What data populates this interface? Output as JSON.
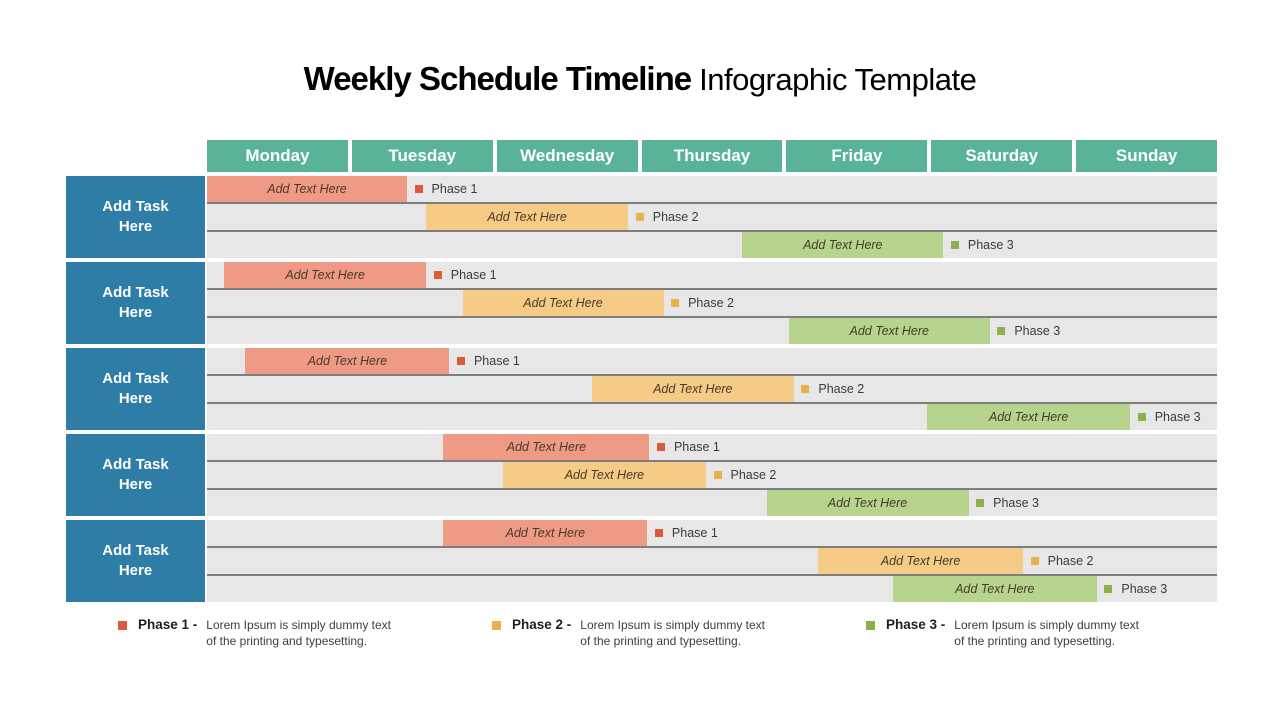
{
  "title": {
    "bold": "Weekly Schedule Timeline",
    "regular": "Infographic Template"
  },
  "days": [
    "Monday",
    "Tuesday",
    "Wednesday",
    "Thursday",
    "Friday",
    "Saturday",
    "Sunday"
  ],
  "colors": {
    "header_bg": "#58B39A",
    "task_bg": "#2E7DA7",
    "row_bg": "#E7E7E7",
    "separator": "#7E7E7E",
    "phase1": {
      "bar": "#EE9A84",
      "marker": "#DC5B3C"
    },
    "phase2": {
      "bar": "#F5CB86",
      "marker": "#E8AF4B"
    },
    "phase3": {
      "bar": "#B6D48D",
      "marker": "#89B24B"
    }
  },
  "schedule": {
    "groups": [
      {
        "task": "Add Task Here",
        "rows": [
          {
            "bar_label": "Add Text Here",
            "phase": "Phase 1",
            "phase_key": "phase1",
            "left_pct": 0.0,
            "width_pct": 19.8
          },
          {
            "bar_label": "Add Text Here",
            "phase": "Phase 2",
            "phase_key": "phase2",
            "left_pct": 21.7,
            "width_pct": 20.0
          },
          {
            "bar_label": "Add Text Here",
            "phase": "Phase 3",
            "phase_key": "phase3",
            "left_pct": 53.0,
            "width_pct": 19.9
          }
        ]
      },
      {
        "task": "Add Task Here",
        "rows": [
          {
            "bar_label": "Add Text Here",
            "phase": "Phase 1",
            "phase_key": "phase1",
            "left_pct": 1.7,
            "width_pct": 20.0
          },
          {
            "bar_label": "Add Text Here",
            "phase": "Phase 2",
            "phase_key": "phase2",
            "left_pct": 25.3,
            "width_pct": 19.9
          },
          {
            "bar_label": "Add Text Here",
            "phase": "Phase 3",
            "phase_key": "phase3",
            "left_pct": 57.6,
            "width_pct": 19.9
          }
        ]
      },
      {
        "task": "Add Task Here",
        "rows": [
          {
            "bar_label": "Add Text Here",
            "phase": "Phase 1",
            "phase_key": "phase1",
            "left_pct": 3.8,
            "width_pct": 20.2
          },
          {
            "bar_label": "Add Text Here",
            "phase": "Phase 2",
            "phase_key": "phase2",
            "left_pct": 38.1,
            "width_pct": 20.0
          },
          {
            "bar_label": "Add Text Here",
            "phase": "Phase 3",
            "phase_key": "phase3",
            "left_pct": 71.3,
            "width_pct": 20.1
          }
        ]
      },
      {
        "task": "Add Task Here",
        "rows": [
          {
            "bar_label": "Add Text Here",
            "phase": "Phase 1",
            "phase_key": "phase1",
            "left_pct": 23.4,
            "width_pct": 20.4
          },
          {
            "bar_label": "Add Text Here",
            "phase": "Phase 2",
            "phase_key": "phase2",
            "left_pct": 29.3,
            "width_pct": 20.1
          },
          {
            "bar_label": "Add Text Here",
            "phase": "Phase 3",
            "phase_key": "phase3",
            "left_pct": 55.4,
            "width_pct": 20.0
          }
        ]
      },
      {
        "task": "Add Task Here",
        "rows": [
          {
            "bar_label": "Add Text Here",
            "phase": "Phase 1",
            "phase_key": "phase1",
            "left_pct": 23.4,
            "width_pct": 20.2
          },
          {
            "bar_label": "Add Text Here",
            "phase": "Phase 2",
            "phase_key": "phase2",
            "left_pct": 60.5,
            "width_pct": 20.3
          },
          {
            "bar_label": "Add Text Here",
            "phase": "Phase 3",
            "phase_key": "phase3",
            "left_pct": 67.9,
            "width_pct": 20.2
          }
        ]
      }
    ]
  },
  "legend": [
    {
      "label": "Phase 1 -",
      "phase_key": "phase1",
      "desc_line1": "Lorem Ipsum is simply dummy text",
      "desc_line2": "of the printing and typesetting."
    },
    {
      "label": "Phase 2 -",
      "phase_key": "phase2",
      "desc_line1": "Lorem Ipsum is simply dummy text",
      "desc_line2": "of the printing and typesetting."
    },
    {
      "label": "Phase 3 -",
      "phase_key": "phase3",
      "desc_line1": "Lorem Ipsum is simply dummy text",
      "desc_line2": "of the printing and typesetting."
    }
  ],
  "chart_data": {
    "type": "bar",
    "subtype": "gantt-weekly-timeline",
    "title": "Weekly Schedule Timeline Infographic Template",
    "x_axis_categories": [
      "Monday",
      "Tuesday",
      "Wednesday",
      "Thursday",
      "Friday",
      "Saturday",
      "Sunday"
    ],
    "x_range_days": [
      0,
      7
    ],
    "y_categories": [
      "Add Task Here",
      "Add Task Here",
      "Add Task Here",
      "Add Task Here",
      "Add Task Here"
    ],
    "legend_position": "bottom",
    "grid": false,
    "bars": [
      {
        "task_index": 0,
        "phase": "Phase 1",
        "start_day": 0.0,
        "end_day": 1.39
      },
      {
        "task_index": 0,
        "phase": "Phase 2",
        "start_day": 1.52,
        "end_day": 2.92
      },
      {
        "task_index": 0,
        "phase": "Phase 3",
        "start_day": 3.71,
        "end_day": 5.1
      },
      {
        "task_index": 1,
        "phase": "Phase 1",
        "start_day": 0.12,
        "end_day": 1.52
      },
      {
        "task_index": 1,
        "phase": "Phase 2",
        "start_day": 1.77,
        "end_day": 3.16
      },
      {
        "task_index": 1,
        "phase": "Phase 3",
        "start_day": 4.03,
        "end_day": 5.43
      },
      {
        "task_index": 2,
        "phase": "Phase 1",
        "start_day": 0.27,
        "end_day": 1.68
      },
      {
        "task_index": 2,
        "phase": "Phase 2",
        "start_day": 2.67,
        "end_day": 4.07
      },
      {
        "task_index": 2,
        "phase": "Phase 3",
        "start_day": 4.99,
        "end_day": 6.4
      },
      {
        "task_index": 3,
        "phase": "Phase 1",
        "start_day": 1.64,
        "end_day": 3.07
      },
      {
        "task_index": 3,
        "phase": "Phase 2",
        "start_day": 2.05,
        "end_day": 3.46
      },
      {
        "task_index": 3,
        "phase": "Phase 3",
        "start_day": 3.88,
        "end_day": 5.28
      },
      {
        "task_index": 4,
        "phase": "Phase 1",
        "start_day": 1.64,
        "end_day": 3.05
      },
      {
        "task_index": 4,
        "phase": "Phase 2",
        "start_day": 4.24,
        "end_day": 5.66
      },
      {
        "task_index": 4,
        "phase": "Phase 3",
        "start_day": 4.75,
        "end_day": 6.17
      }
    ]
  }
}
